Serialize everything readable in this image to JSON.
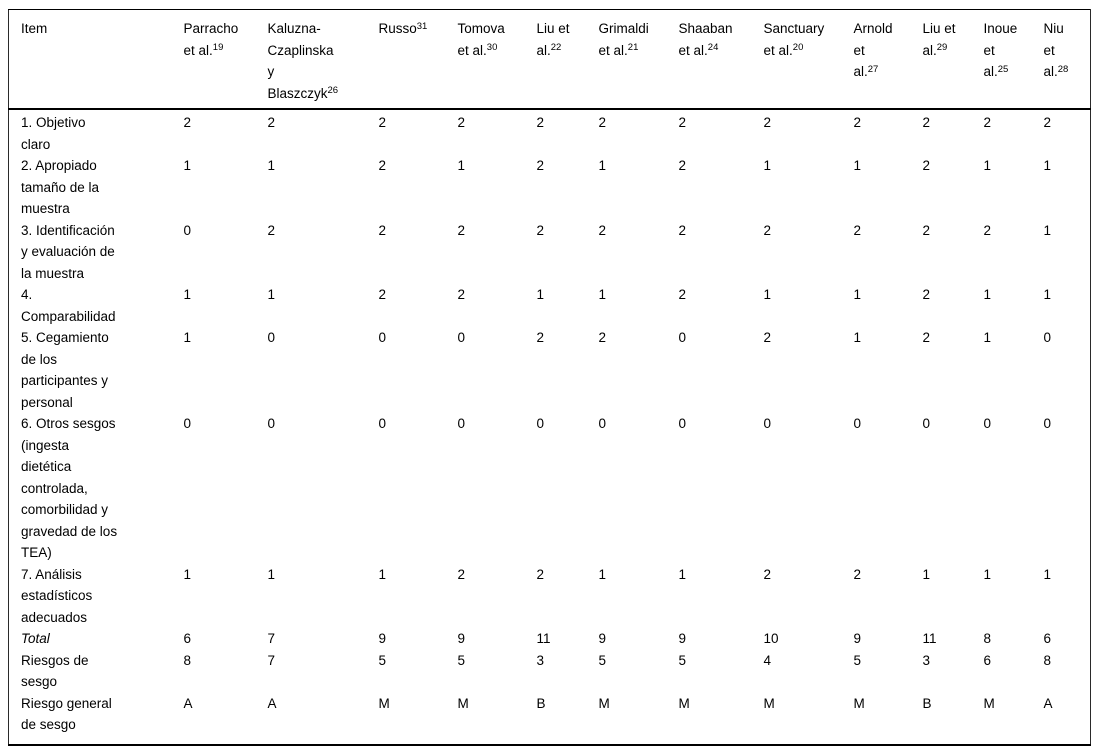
{
  "table": {
    "item_header": "Item",
    "columns": [
      {
        "id": "parracho-et-al-19",
        "lines": [
          [
            "Parracho"
          ],
          [
            "et al.",
            "19"
          ]
        ]
      },
      {
        "id": "kaluzna-czaplinska-y-blaszczyk-26",
        "lines": [
          [
            "Kaluzna-"
          ],
          [
            "Czaplinska"
          ],
          [
            "y"
          ],
          [
            "Blaszczyk",
            "26"
          ]
        ]
      },
      {
        "id": "russo-31",
        "lines": [
          [
            "Russo",
            "31"
          ]
        ]
      },
      {
        "id": "tomova-et-al-30",
        "lines": [
          [
            "Tomova"
          ],
          [
            "et al.",
            "30"
          ]
        ]
      },
      {
        "id": "liu-et-al-22",
        "lines": [
          [
            "Liu et"
          ],
          [
            "al.",
            "22"
          ]
        ]
      },
      {
        "id": "grimaldi-et-al-21",
        "lines": [
          [
            "Grimaldi"
          ],
          [
            "et al.",
            "21"
          ]
        ]
      },
      {
        "id": "shaaban-et-al-24",
        "lines": [
          [
            "Shaaban"
          ],
          [
            "et al.",
            "24"
          ]
        ]
      },
      {
        "id": "sanctuary-et-al-20",
        "lines": [
          [
            "Sanctuary"
          ],
          [
            "et al.",
            "20"
          ]
        ]
      },
      {
        "id": "arnold-et-al-27",
        "lines": [
          [
            "Arnold"
          ],
          [
            "et"
          ],
          [
            "al.",
            "27"
          ]
        ]
      },
      {
        "id": "liu-et-al-29",
        "lines": [
          [
            "Liu et"
          ],
          [
            "al.",
            "29"
          ]
        ]
      },
      {
        "id": "inoue-et-al-25",
        "lines": [
          [
            "Inoue"
          ],
          [
            "et"
          ],
          [
            "al.",
            "25"
          ]
        ]
      },
      {
        "id": "niu-et-al-28",
        "lines": [
          [
            "Niu"
          ],
          [
            "et"
          ],
          [
            "al.",
            "28"
          ]
        ]
      }
    ],
    "rows": [
      {
        "label": "1. Objetivo\nclaro",
        "values": [
          "2",
          "2",
          "2",
          "2",
          "2",
          "2",
          "2",
          "2",
          "2",
          "2",
          "2",
          "2"
        ]
      },
      {
        "label": "2. Apropiado\ntamaño de la\nmuestra",
        "values": [
          "1",
          "1",
          "2",
          "1",
          "2",
          "1",
          "2",
          "1",
          "1",
          "2",
          "1",
          "1"
        ]
      },
      {
        "label": "3. Identificación\ny evaluación de\nla muestra",
        "values": [
          "0",
          "2",
          "2",
          "2",
          "2",
          "2",
          "2",
          "2",
          "2",
          "2",
          "2",
          "1"
        ]
      },
      {
        "label": "4.\nComparabilidad",
        "values": [
          "1",
          "1",
          "2",
          "2",
          "1",
          "1",
          "2",
          "1",
          "1",
          "2",
          "1",
          "1"
        ]
      },
      {
        "label": "5. Cegamiento\nde los\nparticipantes y\npersonal",
        "values": [
          "1",
          "0",
          "0",
          "0",
          "2",
          "2",
          "0",
          "2",
          "1",
          "2",
          "1",
          "0"
        ]
      },
      {
        "label": "6. Otros sesgos\n(ingesta\ndietética\ncontrolada,\ncomorbilidad y\ngravedad de los\nTEA)",
        "values": [
          "0",
          "0",
          "0",
          "0",
          "0",
          "0",
          "0",
          "0",
          "0",
          "0",
          "0",
          "0"
        ]
      },
      {
        "label": "7. Análisis\nestadísticos\nadecuados",
        "values": [
          "1",
          "1",
          "1",
          "2",
          "2",
          "1",
          "1",
          "2",
          "2",
          "1",
          "1",
          "1"
        ]
      },
      {
        "label": "Total",
        "italic": true,
        "values": [
          "6",
          "7",
          "9",
          "9",
          "11",
          "9",
          "9",
          "10",
          "9",
          "11",
          "8",
          "6"
        ]
      },
      {
        "label": "Riesgos de\nsesgo",
        "values": [
          "8",
          "7",
          "5",
          "5",
          "3",
          "5",
          "5",
          "4",
          "5",
          "3",
          "6",
          "8"
        ]
      },
      {
        "label": "Riesgo general\nde sesgo",
        "values": [
          "A",
          "A",
          "M",
          "M",
          "B",
          "M",
          "M",
          "M",
          "M",
          "B",
          "M",
          "A"
        ]
      }
    ]
  }
}
